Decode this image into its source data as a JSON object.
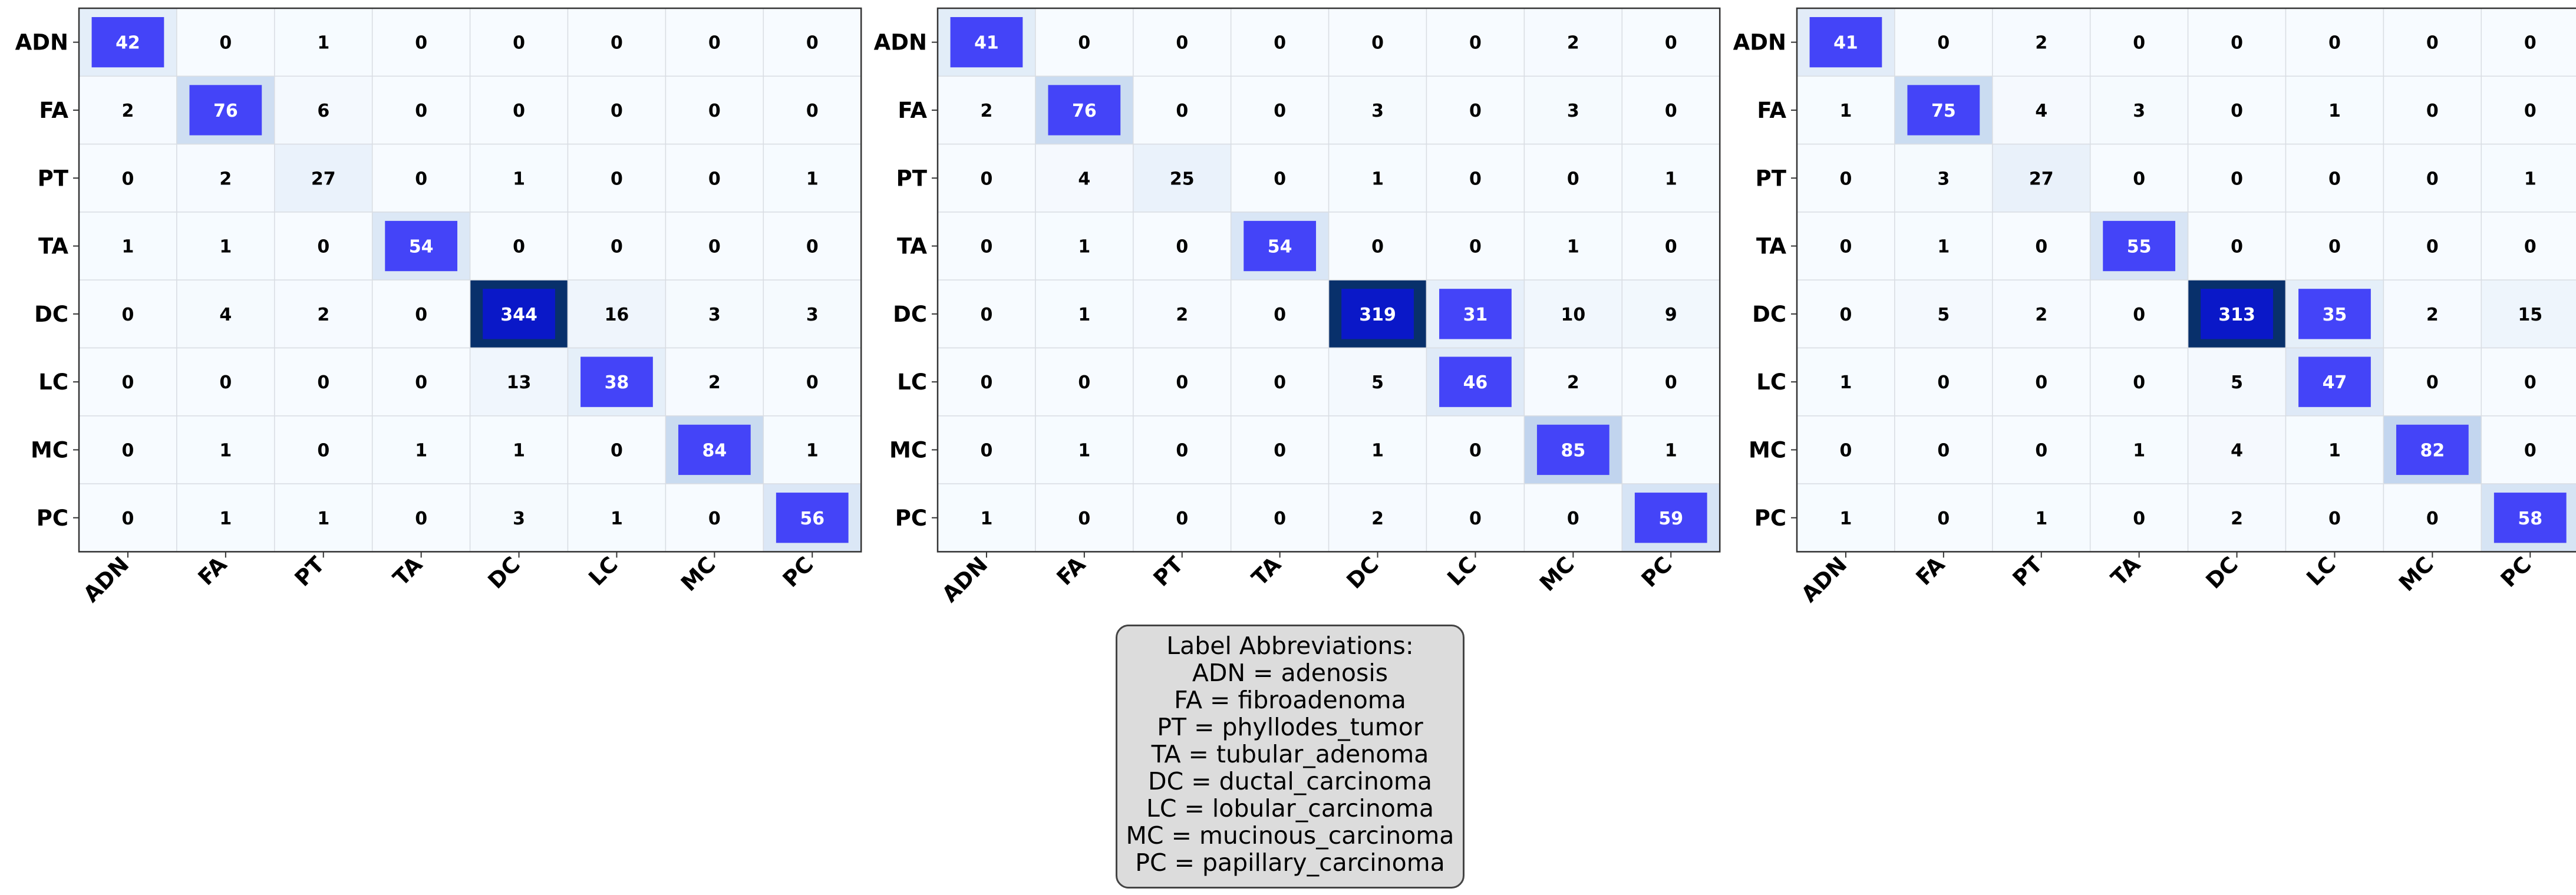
{
  "chart_data": [
    {
      "type": "heatmap",
      "row_labels": [
        "ADN",
        "FA",
        "PT",
        "TA",
        "DC",
        "LC",
        "MC",
        "PC"
      ],
      "col_labels": [
        "ADN",
        "FA",
        "PT",
        "TA",
        "DC",
        "LC",
        "MC",
        "PC"
      ],
      "values": [
        [
          42,
          0,
          1,
          0,
          0,
          0,
          0,
          0
        ],
        [
          2,
          76,
          6,
          0,
          0,
          0,
          0,
          0
        ],
        [
          0,
          2,
          27,
          0,
          1,
          0,
          0,
          1
        ],
        [
          1,
          1,
          0,
          54,
          0,
          0,
          0,
          0
        ],
        [
          0,
          4,
          2,
          0,
          344,
          16,
          3,
          3
        ],
        [
          0,
          0,
          0,
          0,
          13,
          38,
          2,
          0
        ],
        [
          0,
          1,
          0,
          1,
          1,
          0,
          84,
          1
        ],
        [
          0,
          1,
          1,
          0,
          3,
          1,
          0,
          56
        ]
      ]
    },
    {
      "type": "heatmap",
      "row_labels": [
        "ADN",
        "FA",
        "PT",
        "TA",
        "DC",
        "LC",
        "MC",
        "PC"
      ],
      "col_labels": [
        "ADN",
        "FA",
        "PT",
        "TA",
        "DC",
        "LC",
        "MC",
        "PC"
      ],
      "values": [
        [
          41,
          0,
          0,
          0,
          0,
          0,
          2,
          0
        ],
        [
          2,
          76,
          0,
          0,
          3,
          0,
          3,
          0
        ],
        [
          0,
          4,
          25,
          0,
          1,
          0,
          0,
          1
        ],
        [
          0,
          1,
          0,
          54,
          0,
          0,
          1,
          0
        ],
        [
          0,
          1,
          2,
          0,
          319,
          31,
          10,
          9
        ],
        [
          0,
          0,
          0,
          0,
          5,
          46,
          2,
          0
        ],
        [
          0,
          1,
          0,
          0,
          1,
          0,
          85,
          1
        ],
        [
          1,
          0,
          0,
          0,
          2,
          0,
          0,
          59
        ]
      ]
    },
    {
      "type": "heatmap",
      "row_labels": [
        "ADN",
        "FA",
        "PT",
        "TA",
        "DC",
        "LC",
        "MC",
        "PC"
      ],
      "col_labels": [
        "ADN",
        "FA",
        "PT",
        "TA",
        "DC",
        "LC",
        "MC",
        "PC"
      ],
      "values": [
        [
          41,
          0,
          2,
          0,
          0,
          0,
          0,
          0
        ],
        [
          1,
          75,
          4,
          3,
          0,
          1,
          0,
          0
        ],
        [
          0,
          3,
          27,
          0,
          0,
          0,
          0,
          1
        ],
        [
          0,
          1,
          0,
          55,
          0,
          0,
          0,
          0
        ],
        [
          0,
          5,
          2,
          0,
          313,
          35,
          2,
          15
        ],
        [
          1,
          0,
          0,
          0,
          5,
          47,
          0,
          0
        ],
        [
          0,
          0,
          0,
          1,
          4,
          1,
          82,
          0
        ],
        [
          1,
          0,
          1,
          0,
          2,
          0,
          0,
          58
        ]
      ]
    }
  ],
  "legend": {
    "title": "Label Abbreviations:",
    "lines": [
      "ADN = adenosis",
      "FA = fibroadenoma",
      "PT = phyllodes_tumor",
      "TA = tubular_adenoma",
      "DC = ductal_carcinoma",
      "LC = lobular_carcinoma",
      "MC = mucinous_carcinoma",
      "PC = papillary_carcinoma"
    ]
  }
}
